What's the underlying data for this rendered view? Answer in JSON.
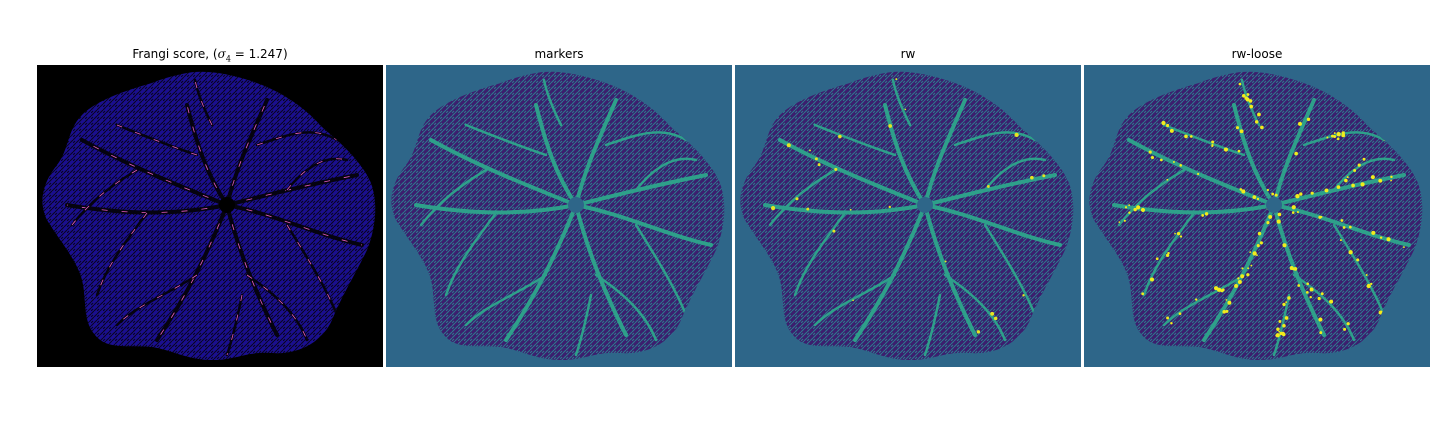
{
  "panels": [
    {
      "title_prefix": "Frangi score, (",
      "title_sigma": "σ",
      "title_sub": "4",
      "title_eq": " = 1.247",
      "title_suffix": ")",
      "background": "#000000",
      "body_color": "#1a0f8f",
      "mesh_color": "#08041e",
      "vessel_color": "#05030f",
      "highlight_color": "#e85cc0"
    },
    {
      "title": "markers",
      "background": "#2e6689",
      "body_color": "#3b1f6e",
      "mesh_color": "#2d7a8e",
      "vessel_color": "#2ea08a",
      "highlight_color": "#2ea08a"
    },
    {
      "title": "rw",
      "background": "#2e6689",
      "body_color": "#3b1f6e",
      "mesh_color": "#2d7a8e",
      "vessel_color": "#2ea08a",
      "highlight_color": "#e6e422"
    },
    {
      "title": "rw-loose",
      "background": "#2e6689",
      "body_color": "#3b1f6e",
      "mesh_color": "#2d7a8e",
      "vessel_color": "#2ea08a",
      "highlight_color": "#f2ec1c"
    }
  ]
}
